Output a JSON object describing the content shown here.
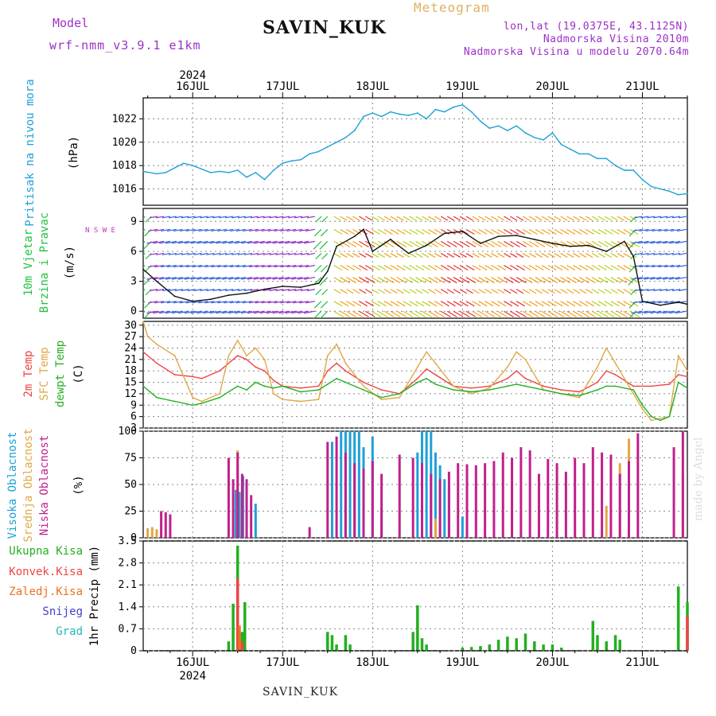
{
  "header": {
    "model_label": "Model",
    "model_value": "wrf-nmm_v3.9.1 e1km",
    "station": "SAVIN_KUK",
    "title": "Meteogram",
    "info_lines": [
      "lon,lat (19.0375E, 43.1125N)",
      "Nadmorska Visina 2010m",
      "Nadmorska Visina u modelu 2070.64m"
    ]
  },
  "footer": {
    "station": "SAVIN_KUK",
    "credit": "made by Angel"
  },
  "time_axis": {
    "year": "2024",
    "day_labels": [
      "16JUL",
      "17JUL",
      "18JUL",
      "19JUL",
      "20JUL",
      "21JUL"
    ],
    "start_offset_days": -0.55,
    "end_offset_days": 5.5
  },
  "panels": {
    "pressure": {
      "labels": [
        "Pritisak na nivou mora",
        "(hPa)"
      ],
      "colors": [
        "#1ea0d8",
        "#000000"
      ]
    },
    "wind": {
      "labels": [
        "10m Vjetar",
        "Brzina i Pravac",
        "(m/s)"
      ],
      "colors": [
        "#22c040",
        "#22c040",
        "#000000"
      ],
      "compass": "N S W E"
    },
    "temp": {
      "labels": [
        "2m Temp",
        "SFC Temp",
        "dewpt Temp",
        "(C)"
      ],
      "colors": [
        "#ee4444",
        "#e0a848",
        "#22b020",
        "#000000"
      ]
    },
    "cloud": {
      "labels": [
        "Visoka Oblacnost",
        "Srednja Oblacnost",
        "Niska Oblacnost",
        "(%)"
      ],
      "colors": [
        "#1ea0d8",
        "#e0a848",
        "#c0208c",
        "#000000"
      ]
    },
    "precip": {
      "labels": [
        "Ukupna Kisa",
        "Konvek.Kisa",
        "Zaledj.Kisa",
        "Snijeg",
        "Grad",
        "1hr Precip (mm)"
      ],
      "colors": [
        "#22b020",
        "#ee4444",
        "#ee7020",
        "#4040d0",
        "#20b8b8",
        "#000000"
      ]
    }
  },
  "chart_data": [
    {
      "type": "line",
      "title": "Pritisak na nivou mora",
      "ylabel": "(hPa)",
      "ylim": [
        1014.6,
        1023.8
      ],
      "yticks": [
        1016,
        1018,
        1020,
        1022
      ],
      "series": [
        {
          "color": "#1ea0d8",
          "x": [
            -0.55,
            -0.4,
            -0.3,
            -0.2,
            -0.1,
            0.0,
            0.1,
            0.2,
            0.3,
            0.4,
            0.5,
            0.6,
            0.7,
            0.8,
            0.9,
            1.0,
            1.1,
            1.2,
            1.3,
            1.4,
            1.5,
            1.6,
            1.7,
            1.8,
            1.9,
            2.0,
            2.1,
            2.2,
            2.3,
            2.4,
            2.5,
            2.6,
            2.7,
            2.8,
            2.9,
            3.0,
            3.1,
            3.2,
            3.3,
            3.4,
            3.5,
            3.6,
            3.7,
            3.8,
            3.9,
            4.0,
            4.1,
            4.2,
            4.3,
            4.4,
            4.5,
            4.6,
            4.7,
            4.8,
            4.9,
            5.0,
            5.1,
            5.2,
            5.3,
            5.4,
            5.5
          ],
          "values": [
            1017.5,
            1017.3,
            1017.4,
            1017.8,
            1018.2,
            1018.0,
            1017.7,
            1017.4,
            1017.5,
            1017.4,
            1017.6,
            1017.0,
            1017.4,
            1016.8,
            1017.6,
            1018.2,
            1018.4,
            1018.5,
            1019.0,
            1019.2,
            1019.6,
            1020.0,
            1020.4,
            1021.0,
            1022.2,
            1022.5,
            1022.2,
            1022.6,
            1022.4,
            1022.3,
            1022.5,
            1022.0,
            1022.8,
            1022.6,
            1023.0,
            1023.2,
            1022.6,
            1021.8,
            1021.2,
            1021.4,
            1021.0,
            1021.4,
            1020.8,
            1020.4,
            1020.2,
            1020.8,
            1019.8,
            1019.4,
            1019.0,
            1019.0,
            1018.6,
            1018.6,
            1018.0,
            1017.6,
            1017.6,
            1016.8,
            1016.2,
            1016.0,
            1015.8,
            1015.5,
            1015.6
          ]
        }
      ]
    },
    {
      "type": "line",
      "title": "10m Vjetar Brzina i Pravac",
      "ylabel": "(m/s)",
      "ylim": [
        -0.7,
        10.3
      ],
      "yticks": [
        0,
        3,
        6,
        9
      ],
      "series": [
        {
          "name": "",
          "color": "#111111",
          "x": [
            -0.55,
            -0.4,
            -0.2,
            0.0,
            0.2,
            0.4,
            0.6,
            0.8,
            1.0,
            1.2,
            1.4,
            1.5,
            1.6,
            1.8,
            1.9,
            2.0,
            2.2,
            2.4,
            2.6,
            2.8,
            3.0,
            3.2,
            3.4,
            3.6,
            3.8,
            4.0,
            4.2,
            4.4,
            4.6,
            4.8,
            4.9,
            5.0,
            5.2,
            5.4,
            5.5
          ],
          "values": [
            4.2,
            3.0,
            1.5,
            1.0,
            1.2,
            1.6,
            1.8,
            2.2,
            2.5,
            2.4,
            2.8,
            4.0,
            6.5,
            7.5,
            8.2,
            6.0,
            7.2,
            5.8,
            6.6,
            7.8,
            8.0,
            6.8,
            7.5,
            7.6,
            7.2,
            6.8,
            6.5,
            6.6,
            6.0,
            7.0,
            5.5,
            1.0,
            0.6,
            0.9,
            0.7
          ]
        }
      ]
    },
    {
      "type": "line",
      "title": "2m Temp / SFC Temp / dewpt Temp",
      "ylabel": "(C)",
      "ylim": [
        3,
        31
      ],
      "yticks": [
        3,
        6,
        9,
        12,
        15,
        18,
        21,
        24,
        27,
        30
      ],
      "series": [
        {
          "name": "2m Temp",
          "color": "#ee4444",
          "x": [
            -0.55,
            -0.4,
            -0.2,
            0.0,
            0.1,
            0.3,
            0.5,
            0.6,
            0.7,
            0.8,
            0.9,
            1.0,
            1.2,
            1.4,
            1.5,
            1.6,
            1.7,
            1.9,
            2.1,
            2.3,
            2.5,
            2.6,
            2.7,
            2.9,
            3.1,
            3.3,
            3.5,
            3.6,
            3.7,
            3.9,
            4.1,
            4.3,
            4.5,
            4.6,
            4.7,
            4.9,
            5.1,
            5.3,
            5.4,
            5.5
          ],
          "values": [
            23,
            20,
            17,
            16.5,
            16,
            18,
            22,
            21,
            19,
            18,
            15.5,
            14,
            13.5,
            14,
            18,
            20,
            18,
            15,
            13,
            12,
            16,
            18.5,
            17,
            14,
            13.5,
            14,
            16,
            18,
            16,
            14,
            13,
            12.5,
            15,
            18,
            17,
            14,
            14,
            14.5,
            17,
            16.5
          ]
        },
        {
          "name": "SFC Temp",
          "color": "#e0a848",
          "x": [
            -0.55,
            -0.5,
            -0.4,
            -0.2,
            0.0,
            0.1,
            0.3,
            0.4,
            0.5,
            0.6,
            0.7,
            0.8,
            0.9,
            1.0,
            1.2,
            1.4,
            1.5,
            1.6,
            1.7,
            1.9,
            2.1,
            2.3,
            2.5,
            2.6,
            2.7,
            2.9,
            3.1,
            3.3,
            3.5,
            3.6,
            3.7,
            3.9,
            4.1,
            4.3,
            4.5,
            4.6,
            4.7,
            4.9,
            5.0,
            5.1,
            5.3,
            5.4,
            5.5
          ],
          "values": [
            31,
            27,
            25,
            22,
            11,
            10,
            12,
            22,
            26,
            22,
            24,
            21,
            12,
            10.5,
            10,
            10.5,
            22,
            25,
            20,
            14,
            10.5,
            11,
            19,
            23,
            20,
            14,
            12,
            13.5,
            19,
            23,
            21,
            13,
            12,
            11,
            19,
            24,
            20,
            12,
            8,
            5,
            6,
            22,
            18
          ]
        },
        {
          "name": "dewpt Temp",
          "color": "#22b020",
          "x": [
            -0.55,
            -0.4,
            -0.2,
            0.0,
            0.1,
            0.3,
            0.5,
            0.6,
            0.7,
            0.8,
            0.9,
            1.0,
            1.2,
            1.4,
            1.5,
            1.6,
            1.7,
            1.9,
            2.1,
            2.3,
            2.5,
            2.6,
            2.7,
            2.9,
            3.1,
            3.3,
            3.5,
            3.6,
            3.7,
            3.9,
            4.1,
            4.3,
            4.5,
            4.6,
            4.7,
            4.9,
            5.0,
            5.1,
            5.2,
            5.3,
            5.4,
            5.5
          ],
          "values": [
            14,
            11,
            10,
            9,
            9.5,
            11,
            14,
            13,
            15,
            14,
            13.5,
            14,
            12.5,
            13,
            14.5,
            16,
            15,
            13,
            11,
            12,
            15,
            16,
            14.5,
            13,
            12.5,
            13,
            14,
            14.5,
            14,
            13,
            12,
            11.5,
            13,
            14,
            14,
            13,
            9,
            6,
            5,
            6,
            15,
            13.5
          ]
        }
      ]
    },
    {
      "type": "bar",
      "title": "Oblacnost",
      "ylabel": "(%)",
      "ylim": [
        0,
        100
      ],
      "yticks": [
        0,
        25,
        50,
        75,
        100
      ],
      "series": [
        {
          "name": "Visoka Oblacnost",
          "color": "#1ea0d8",
          "x": [
            0.48,
            0.52,
            0.56,
            0.6,
            0.7,
            1.55,
            1.65,
            1.7,
            1.75,
            1.8,
            1.85,
            1.9,
            2.0,
            2.1,
            2.5,
            2.55,
            2.6,
            2.65,
            2.7,
            2.75,
            2.8,
            2.85,
            3.0
          ],
          "values": [
            45,
            43,
            58,
            40,
            32,
            90,
            100,
            100,
            100,
            100,
            100,
            85,
            95,
            28,
            80,
            100,
            100,
            100,
            80,
            68,
            55,
            48,
            20
          ]
        },
        {
          "name": "Srednja Oblacnost",
          "color": "#e0a848",
          "x": [
            -0.5,
            -0.45,
            -0.4,
            0.5,
            0.55,
            0.6,
            1.7,
            1.8,
            2.7,
            2.75,
            4.6,
            4.75,
            4.85,
            5.45
          ],
          "values": [
            9,
            10,
            8,
            82,
            48,
            35,
            30,
            25,
            18,
            22,
            30,
            70,
            93,
            60
          ]
        },
        {
          "name": "Niska Oblacnost",
          "color": "#c0208c",
          "x": [
            -0.35,
            -0.3,
            -0.25,
            0.4,
            0.45,
            0.5,
            0.55,
            0.6,
            0.65,
            1.3,
            1.5,
            1.6,
            1.7,
            1.8,
            1.9,
            2.0,
            2.1,
            2.3,
            2.45,
            2.55,
            2.65,
            2.75,
            2.85,
            2.95,
            3.05,
            3.15,
            3.25,
            3.35,
            3.45,
            3.55,
            3.65,
            3.75,
            3.85,
            3.95,
            4.05,
            4.15,
            4.25,
            4.35,
            4.45,
            4.55,
            4.65,
            4.75,
            4.85,
            4.95,
            5.35,
            5.45
          ],
          "values": [
            25,
            24,
            22,
            75,
            55,
            80,
            60,
            55,
            40,
            10,
            90,
            95,
            80,
            70,
            65,
            72,
            60,
            78,
            75,
            70,
            60,
            55,
            62,
            70,
            69,
            68,
            70,
            72,
            80,
            75,
            85,
            82,
            60,
            74,
            70,
            62,
            75,
            70,
            85,
            80,
            78,
            60,
            72,
            98,
            85,
            100
          ]
        }
      ]
    },
    {
      "type": "bar",
      "title": "1hr Precip",
      "ylabel": "1hr Precip (mm)",
      "ylim": [
        0,
        3.5
      ],
      "yticks": [
        0,
        0.7,
        1.4,
        2.1,
        2.8,
        3.5
      ],
      "series": [
        {
          "name": "Ukupna Kisa",
          "color": "#22b020",
          "x": [
            0.4,
            0.45,
            0.5,
            0.55,
            0.58,
            1.5,
            1.55,
            1.6,
            1.7,
            1.75,
            2.45,
            2.5,
            2.55,
            2.6,
            3.0,
            3.1,
            3.2,
            3.3,
            3.4,
            3.5,
            3.6,
            3.7,
            3.8,
            3.9,
            4.0,
            4.1,
            4.45,
            4.5,
            4.6,
            4.7,
            4.75,
            5.4,
            5.5
          ],
          "values": [
            0.3,
            1.5,
            3.35,
            0.6,
            1.55,
            0.6,
            0.5,
            0.2,
            0.5,
            0.2,
            0.6,
            1.45,
            0.4,
            0.2,
            0.1,
            0.12,
            0.15,
            0.2,
            0.35,
            0.45,
            0.4,
            0.55,
            0.3,
            0.2,
            0.2,
            0.1,
            0.95,
            0.5,
            0.3,
            0.5,
            0.35,
            2.05,
            1.55
          ]
        },
        {
          "name": "Konvek.Kisa",
          "color": "#ee4444",
          "x": [
            0.5,
            0.55,
            5.5
          ],
          "values": [
            2.3,
            0.3,
            1.1
          ]
        },
        {
          "name": "Zaledj.Kisa",
          "color": "#ee7020",
          "x": [
            0.52
          ],
          "values": [
            0.8
          ]
        }
      ]
    }
  ]
}
